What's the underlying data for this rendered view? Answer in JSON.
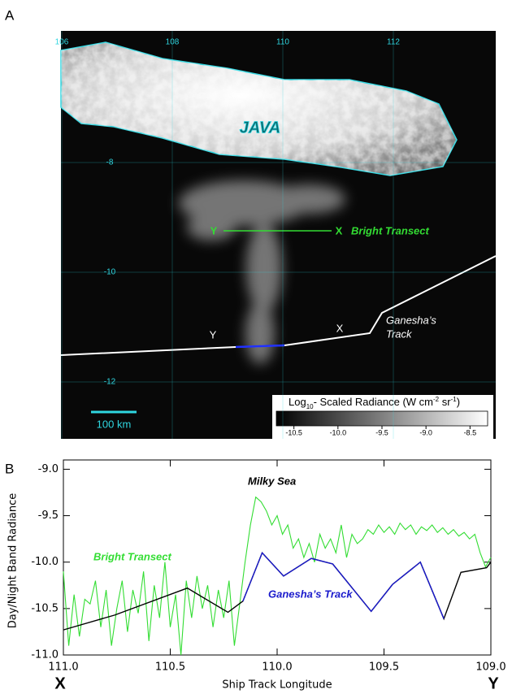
{
  "image_panel": {
    "panel_label": "A",
    "lon_ticks": [
      106,
      108,
      110,
      112
    ],
    "lat_ticks": [
      -8,
      -10,
      -12
    ],
    "island_label": "JAVA",
    "transect_ends": [
      "Y",
      "X"
    ],
    "transect_label": "Bright Transect",
    "track_ends": [
      "Y",
      "X"
    ],
    "track_label": [
      "Ganesha’s",
      "Track"
    ],
    "scale_label": "100 km",
    "colorbar": {
      "title": [
        "Log",
        "10",
        "- Scaled Radiance (W cm",
        "-2",
        " sr",
        "-1",
        ")"
      ],
      "lim": [
        -10.7,
        -8.3
      ],
      "ticks": [
        {
          "value": -10.5,
          "label": "-10.5"
        },
        {
          "value": -10.0,
          "label": "-10.0"
        },
        {
          "value": -9.5,
          "label": "-9.5"
        },
        {
          "value": -9.0,
          "label": "-9.0"
        },
        {
          "value": -8.5,
          "label": "-8.5"
        }
      ]
    }
  },
  "chart_data": {
    "type": "line",
    "panel_label": "B",
    "x_label": "Ship Track Longitude",
    "y_label": "Day/Night Band Radiance",
    "x_end_labels": [
      "X",
      "Y"
    ],
    "annotation": "Milky Sea",
    "xlim": [
      111.0,
      109.0
    ],
    "ylim": [
      -11.0,
      -8.9
    ],
    "xticks": [
      {
        "value": 111.0,
        "label": "111.0"
      },
      {
        "value": 110.5,
        "label": "110.5"
      },
      {
        "value": 110.0,
        "label": "110.0"
      },
      {
        "value": 109.5,
        "label": "109.5"
      },
      {
        "value": 109.0,
        "label": "109.0"
      }
    ],
    "yticks": [
      {
        "value": -9.0,
        "label": "-9.0"
      },
      {
        "value": -9.5,
        "label": "-9.5"
      },
      {
        "value": -10.0,
        "label": "-10.0"
      },
      {
        "value": -10.5,
        "label": "-10.5"
      },
      {
        "value": -11.0,
        "label": "-11.0"
      }
    ],
    "series": [
      {
        "name": "Bright Transect",
        "color": "#33dd33",
        "x": [
          111.0,
          110.975,
          110.95,
          110.925,
          110.9,
          110.875,
          110.85,
          110.825,
          110.8,
          110.775,
          110.75,
          110.725,
          110.7,
          110.675,
          110.65,
          110.625,
          110.6,
          110.575,
          110.55,
          110.525,
          110.5,
          110.475,
          110.45,
          110.425,
          110.4,
          110.375,
          110.35,
          110.325,
          110.3,
          110.275,
          110.25,
          110.225,
          110.2,
          110.175,
          110.15,
          110.125,
          110.1,
          110.075,
          110.05,
          110.025,
          110.0,
          109.975,
          109.95,
          109.925,
          109.9,
          109.875,
          109.85,
          109.825,
          109.8,
          109.775,
          109.75,
          109.725,
          109.7,
          109.675,
          109.65,
          109.625,
          109.6,
          109.575,
          109.55,
          109.525,
          109.5,
          109.475,
          109.45,
          109.425,
          109.4,
          109.375,
          109.35,
          109.325,
          109.3,
          109.275,
          109.25,
          109.225,
          109.2,
          109.175,
          109.15,
          109.125,
          109.1,
          109.075,
          109.05,
          109.025,
          109.0
        ],
        "values": [
          -10.1,
          -10.9,
          -10.35,
          -10.8,
          -10.4,
          -10.45,
          -10.2,
          -10.7,
          -10.3,
          -10.9,
          -10.5,
          -10.2,
          -10.75,
          -10.3,
          -10.55,
          -10.1,
          -10.85,
          -10.25,
          -10.6,
          -10.0,
          -10.7,
          -10.35,
          -11.0,
          -10.2,
          -10.6,
          -10.15,
          -10.5,
          -10.25,
          -10.7,
          -10.3,
          -10.6,
          -10.2,
          -10.9,
          -10.45,
          -10.0,
          -9.6,
          -9.3,
          -9.35,
          -9.45,
          -9.6,
          -9.5,
          -9.7,
          -9.6,
          -9.85,
          -9.75,
          -9.95,
          -9.8,
          -10.0,
          -9.7,
          -9.85,
          -9.75,
          -9.9,
          -9.6,
          -9.95,
          -9.7,
          -9.8,
          -9.75,
          -9.65,
          -9.7,
          -9.6,
          -9.68,
          -9.62,
          -9.7,
          -9.58,
          -9.65,
          -9.6,
          -9.7,
          -9.62,
          -9.66,
          -9.6,
          -9.68,
          -9.63,
          -9.7,
          -9.65,
          -9.72,
          -9.68,
          -9.75,
          -9.7,
          -9.9,
          -10.05,
          -9.95
        ]
      },
      {
        "color": "#000000",
        "x": [
          111.0,
          110.76,
          110.42,
          110.23,
          110.16,
          110.07,
          109.97,
          109.84,
          109.74,
          109.56,
          109.46,
          109.33,
          109.22,
          109.14,
          109.02,
          109.0
        ],
        "values": [
          -10.73,
          -10.57,
          -10.28,
          -10.54,
          -10.42,
          -9.9,
          -10.15,
          -9.96,
          -10.02,
          -10.53,
          -10.24,
          -10.0,
          -10.61,
          -10.11,
          -10.06,
          -10.0
        ]
      },
      {
        "name": "Ganesha’s Track",
        "color": "#1a1acc",
        "x": [
          110.16,
          110.07,
          109.97,
          109.84,
          109.74,
          109.56,
          109.46,
          109.33,
          109.22
        ],
        "values": [
          -10.42,
          -9.9,
          -10.15,
          -9.96,
          -10.02,
          -10.53,
          -10.24,
          -10.0,
          -10.61
        ]
      }
    ]
  }
}
